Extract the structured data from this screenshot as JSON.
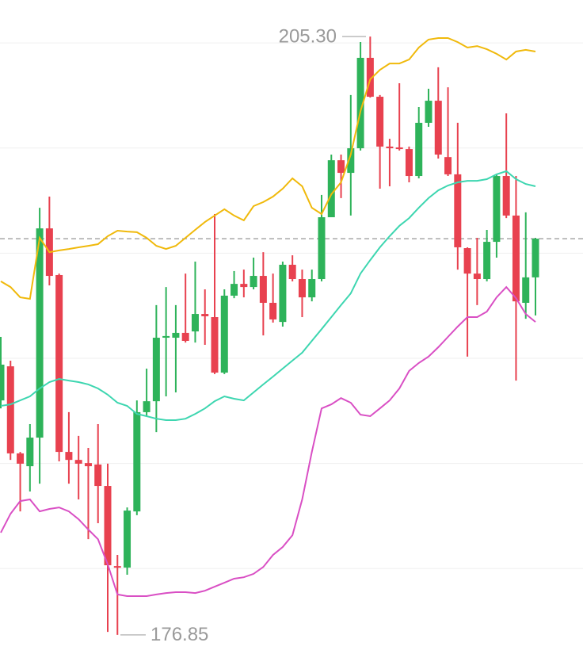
{
  "chart_data": {
    "type": "candlestick",
    "ylim": [
      175.94,
      207.04
    ],
    "yticks": [
      180,
      185,
      190,
      195,
      200,
      205
    ],
    "grid": true,
    "up_color": "#2eb35a",
    "down_color": "#e8414f",
    "open": [
      188.0,
      189.62,
      185.48,
      184.87,
      186.23,
      196.18,
      193.96,
      185.55,
      185.17,
      185.02,
      184.95,
      183.93,
      180.12,
      180.05,
      182.72,
      187.44,
      187.96,
      190.98,
      190.98,
      191.21,
      191.28,
      192.11,
      191.96,
      189.32,
      192.98,
      193.54,
      193.39,
      193.92,
      192.64,
      191.73,
      194.45,
      193.77,
      192.9,
      193.77,
      196.71,
      199.42,
      198.82,
      199.99,
      204.29,
      202.44,
      200.07,
      200.03,
      199.95,
      198.67,
      201.2,
      202.25,
      199.57,
      198.75,
      195.24,
      194.03,
      193.77,
      195.54,
      198.67,
      196.79,
      192.64,
      193.85
    ],
    "high": [
      191.02,
      189.89,
      185.55,
      186.87,
      197.16,
      197.69,
      194.03,
      187.44,
      186.31,
      185.74,
      186.87,
      184.99,
      180.65,
      182.91,
      188.0,
      189.51,
      192.53,
      193.39,
      192.53,
      194.03,
      194.6,
      193.28,
      196.86,
      193.28,
      194.15,
      194.22,
      194.79,
      195.05,
      194.03,
      194.6,
      194.9,
      194.22,
      194.22,
      197.77,
      199.69,
      199.69,
      202.52,
      205.04,
      205.3,
      202.52,
      200.44,
      203.08,
      200.07,
      201.95,
      202.82,
      203.84,
      202.89,
      201.2,
      195.28,
      195.73,
      196.11,
      198.75,
      201.65,
      198.67,
      196.94,
      195.73
    ],
    "low": [
      187.62,
      185.17,
      182.72,
      183.67,
      184.04,
      193.47,
      185.1,
      184.04,
      183.29,
      181.4,
      182.16,
      176.99,
      176.85,
      179.71,
      182.54,
      187.25,
      186.49,
      188.19,
      188.38,
      190.75,
      190.75,
      190.64,
      189.25,
      189.25,
      192.86,
      192.9,
      193.28,
      191.09,
      191.7,
      191.51,
      193.66,
      191.96,
      192.71,
      193.66,
      196.79,
      197.62,
      196.79,
      199.88,
      202.4,
      198.07,
      198.18,
      199.88,
      198.37,
      198.56,
      201.01,
      199.5,
      198.67,
      194.22,
      190.08,
      192.53,
      193.66,
      194.79,
      196.67,
      188.94,
      191.88,
      192.04
    ],
    "close": [
      189.7,
      185.48,
      184.99,
      186.23,
      196.18,
      193.92,
      185.55,
      185.17,
      184.99,
      184.87,
      183.93,
      180.16,
      180.05,
      182.76,
      187.44,
      187.96,
      190.98,
      191.06,
      191.21,
      190.83,
      192.11,
      192.0,
      189.32,
      192.98,
      193.54,
      193.39,
      193.92,
      192.64,
      191.85,
      194.45,
      193.77,
      192.9,
      193.77,
      196.71,
      199.42,
      198.82,
      199.99,
      204.29,
      202.44,
      200.07,
      199.99,
      199.95,
      198.67,
      201.2,
      202.25,
      199.69,
      198.75,
      195.28,
      194.03,
      193.77,
      195.54,
      198.67,
      196.79,
      192.71,
      193.85,
      195.69
    ],
    "bands": [
      {
        "color": "#f0b90b",
        "values": [
          193.66,
          193.39,
          192.9,
          192.83,
          195.73,
          195.05,
          195.13,
          195.2,
          195.28,
          195.35,
          195.43,
          195.81,
          196.07,
          196.03,
          196.0,
          195.73,
          195.35,
          195.2,
          195.35,
          195.73,
          196.11,
          196.48,
          196.79,
          197.09,
          196.79,
          196.56,
          197.24,
          197.43,
          197.69,
          198.07,
          198.56,
          198.18,
          197.16,
          196.86,
          197.8,
          198.37,
          199.69,
          201.76,
          203.27,
          203.72,
          204.02,
          204.02,
          204.21,
          204.78,
          205.16,
          205.23,
          205.23,
          205.04,
          204.78,
          204.85,
          204.7,
          204.48,
          204.21,
          204.59,
          204.67,
          204.59
        ]
      },
      {
        "color": "#3dd6b0",
        "values": [
          187.74,
          187.81,
          188.0,
          188.19,
          188.57,
          188.87,
          189.02,
          188.94,
          188.87,
          188.76,
          188.57,
          188.27,
          187.89,
          187.74,
          187.36,
          187.25,
          187.13,
          187.06,
          187.06,
          187.13,
          187.36,
          187.62,
          187.96,
          188.19,
          188.08,
          188.0,
          188.38,
          188.76,
          189.13,
          189.51,
          189.89,
          190.27,
          190.83,
          191.39,
          191.96,
          192.53,
          193.09,
          194.03,
          194.67,
          195.28,
          195.81,
          196.3,
          196.67,
          197.16,
          197.62,
          197.99,
          198.22,
          198.37,
          198.44,
          198.44,
          198.52,
          198.75,
          198.9,
          198.52,
          198.29,
          198.18
        ]
      },
      {
        "color": "#d94fc4",
        "values": [
          181.71,
          182.61,
          183.21,
          183.29,
          182.72,
          182.84,
          182.91,
          182.72,
          182.35,
          181.86,
          181.4,
          180.2,
          178.77,
          178.69,
          178.69,
          178.69,
          178.77,
          178.84,
          178.88,
          178.88,
          178.84,
          178.95,
          179.14,
          179.33,
          179.52,
          179.59,
          179.75,
          180.08,
          180.65,
          181.03,
          181.59,
          183.29,
          185.55,
          187.62,
          187.81,
          188.11,
          187.89,
          187.32,
          187.25,
          187.62,
          188.0,
          188.57,
          189.4,
          189.78,
          190.08,
          190.53,
          191.02,
          191.51,
          191.96,
          191.96,
          192.22,
          192.9,
          193.39,
          192.86,
          192.11,
          191.73
        ]
      }
    ],
    "last_price": 195.69,
    "max_label": {
      "value": 205.3,
      "label": "205.30"
    },
    "min_label": {
      "value": 176.85,
      "label": "176.85"
    }
  }
}
